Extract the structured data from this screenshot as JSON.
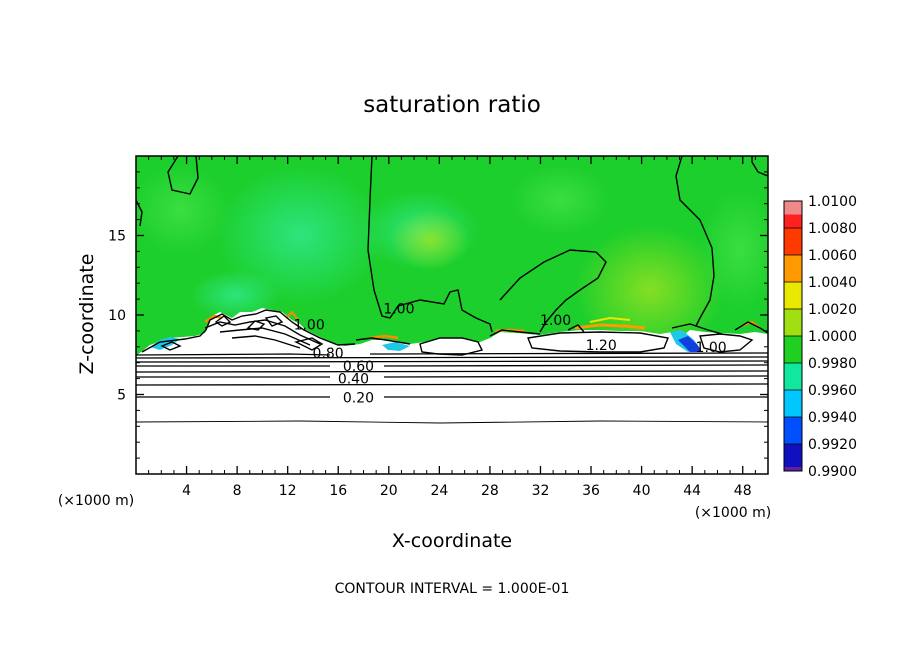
{
  "chart_data": {
    "type": "heatmap",
    "title": "saturation ratio",
    "xlabel": "X-coordinate",
    "ylabel": "Z-coordinate",
    "x_unit": "(×1000 m)",
    "x_unit_right": "(×1000 m)",
    "xlim": [
      0,
      50
    ],
    "ylim": [
      0,
      20
    ],
    "x_ticks": [
      4,
      8,
      12,
      16,
      20,
      24,
      28,
      32,
      36,
      40,
      44,
      48
    ],
    "y_ticks": [
      5,
      10,
      15
    ],
    "contour_interval_text": "CONTOUR INTERVAL = 1.000E-01",
    "contour_labels": [
      {
        "text": "0.20",
        "x": 17.6,
        "y": 4.8
      },
      {
        "text": "0.40",
        "x": 17.2,
        "y": 6.0
      },
      {
        "text": "0.60",
        "x": 17.6,
        "y": 6.8
      },
      {
        "text": "0.80",
        "x": 15.2,
        "y": 7.6
      },
      {
        "text": "1.00",
        "x": 20.8,
        "y": 10.4
      },
      {
        "text": "1.00",
        "x": 33.2,
        "y": 9.7
      },
      {
        "text": "1.00",
        "x": 13.7,
        "y": 9.4
      },
      {
        "text": "1.20",
        "x": 36.8,
        "y": 8.1
      },
      {
        "text": "1.00",
        "x": 45.5,
        "y": 8.0
      }
    ],
    "colorbar": {
      "values": [
        1.01,
        1.008,
        1.006,
        1.004,
        1.002,
        1.0,
        0.998,
        0.996,
        0.994,
        0.992,
        0.99
      ],
      "labels": [
        "1.0100",
        "1.0080",
        "1.0060",
        "1.0040",
        "1.0020",
        "1.0000",
        "0.9980",
        "0.9960",
        "0.9940",
        "0.9920",
        "0.9900"
      ],
      "colors": [
        "#f08a8a",
        "#ff2020",
        "#ff3a00",
        "#ff9a00",
        "#e8e800",
        "#a0e010",
        "#20d020",
        "#10e8a0",
        "#00c8ff",
        "#0050ff",
        "#1010c0",
        "#3010a0",
        "#6020a0"
      ]
    },
    "fill_colors": {
      "upper_field": "#1ccf2c",
      "upper_field_light": "#40e060",
      "upper_field_cyan": "#28e48a",
      "upper_field_yellow": "#80e020",
      "below_cloud": "#ffffff",
      "cyan_patch": "#20c8e8",
      "blue_patch": "#1040e0",
      "orange_edge": "#ff8a00"
    }
  }
}
